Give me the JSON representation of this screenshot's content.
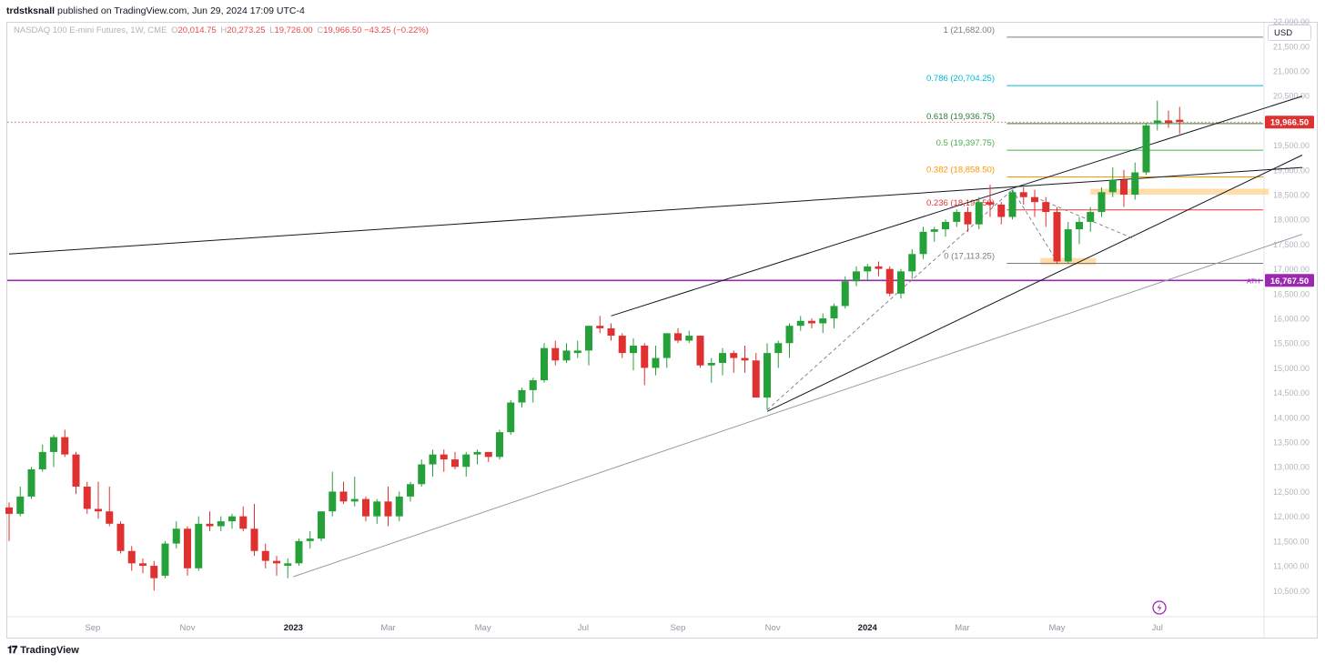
{
  "header": {
    "author": "trdstksnall",
    "published": "published on TradingView.com, Jun 29, 2024 17:09 UTC-4"
  },
  "legend": {
    "symbol": "NASDAQ 100 E-mini Futures, 1W, CME",
    "o_label": "O",
    "o_value": "20,014.75",
    "h_label": "H",
    "h_value": "20,273.25",
    "l_label": "L",
    "l_value": "19,726.00",
    "c_label": "C",
    "c_value": "19,966.50",
    "change": "−43.25 (−0.22%)"
  },
  "currency": "USD",
  "footer": {
    "brand": "TradingView",
    "logo_icon": "tradingview-logo-icon"
  },
  "colors": {
    "up": "#26a13a",
    "down": "#e03131",
    "ath": "#9c27b0",
    "price_tag": "#e03131",
    "fib_1": "#787b86",
    "fib_786": "#00bcd4",
    "fib_618": "#2e7d32",
    "fib_05": "#4caf50",
    "fib_382": "#ff9800",
    "fib_236": "#e53935",
    "fib_0": "#787b86",
    "zone": "#ffcc80"
  },
  "chart_data": {
    "type": "candlestick",
    "title": "NASDAQ 100 E-mini Futures, 1W, CME",
    "y_axis": {
      "min": 10500,
      "max": 22000,
      "ticks": [
        "22,000.00",
        "21,500.00",
        "21,000.00",
        "20,500.00",
        "20,000.00",
        "19,500.00",
        "19,000.00",
        "18,500.00",
        "18,000.00",
        "17,500.00",
        "17,000.00",
        "16,500.00",
        "16,000.00",
        "15,500.00",
        "15,000.00",
        "14,500.00",
        "14,000.00",
        "13,500.00",
        "13,000.00",
        "12,500.00",
        "12,000.00",
        "11,500.00",
        "11,000.00",
        "10,500.00"
      ],
      "tick_values": [
        22000,
        21500,
        21000,
        20500,
        20000,
        19500,
        19000,
        18500,
        18000,
        17500,
        17000,
        16500,
        16000,
        15500,
        15000,
        14500,
        14000,
        13500,
        13000,
        12500,
        12000,
        11500,
        11000,
        10500
      ]
    },
    "x_axis": {
      "labels": [
        "Sep",
        "Nov",
        "2023",
        "Mar",
        "May",
        "Jul",
        "Sep",
        "Nov",
        "2024",
        "Mar",
        "May",
        "Jul"
      ],
      "label_weeks": [
        7.5,
        16,
        25.5,
        34,
        42.5,
        51.5,
        60,
        68.5,
        77,
        85.5,
        94,
        103
      ],
      "bold": [
        "2023",
        "2024"
      ]
    },
    "candles": [
      [
        12180,
        12280,
        11500,
        12050
      ],
      [
        12050,
        12600,
        12000,
        12400
      ],
      [
        12400,
        13000,
        12350,
        12950
      ],
      [
        12950,
        13450,
        12900,
        13300
      ],
      [
        13300,
        13650,
        13000,
        13600
      ],
      [
        13600,
        13750,
        13200,
        13250
      ],
      [
        13250,
        13300,
        12450,
        12600
      ],
      [
        12600,
        12700,
        12050,
        12150
      ],
      [
        12150,
        12700,
        11950,
        12100
      ],
      [
        12100,
        12600,
        11800,
        11850
      ],
      [
        11850,
        11900,
        11250,
        11300
      ],
      [
        11300,
        11400,
        10900,
        11050
      ],
      [
        11050,
        11150,
        10850,
        11000
      ],
      [
        11000,
        11100,
        10500,
        10750
      ],
      [
        10800,
        11500,
        10750,
        11450
      ],
      [
        11450,
        11900,
        11350,
        11750
      ],
      [
        11750,
        11800,
        10800,
        10950
      ],
      [
        10950,
        12000,
        10900,
        11850
      ],
      [
        11850,
        12100,
        11700,
        11800
      ],
      [
        11800,
        12000,
        11700,
        11900
      ],
      [
        11900,
        12050,
        11750,
        12000
      ],
      [
        12000,
        12200,
        11700,
        11750
      ],
      [
        11750,
        12250,
        11200,
        11300
      ],
      [
        11300,
        11450,
        10950,
        11100
      ],
      [
        11100,
        11200,
        10800,
        11050
      ],
      [
        11000,
        11150,
        10750,
        11050
      ],
      [
        11050,
        11550,
        11000,
        11500
      ],
      [
        11500,
        11700,
        11350,
        11550
      ],
      [
        11550,
        12100,
        11500,
        12100
      ],
      [
        12100,
        12900,
        12000,
        12500
      ],
      [
        12500,
        12700,
        12250,
        12300
      ],
      [
        12300,
        12800,
        12200,
        12350
      ],
      [
        12350,
        12400,
        11900,
        12000
      ],
      [
        12000,
        12350,
        11850,
        12300
      ],
      [
        12300,
        12600,
        11800,
        12000
      ],
      [
        12000,
        12500,
        11900,
        12400
      ],
      [
        12400,
        12700,
        12300,
        12650
      ],
      [
        12650,
        13150,
        12600,
        13050
      ],
      [
        13050,
        13350,
        12800,
        13250
      ],
      [
        13250,
        13350,
        12900,
        13150
      ],
      [
        13150,
        13300,
        12950,
        13000
      ],
      [
        13000,
        13300,
        12800,
        13250
      ],
      [
        13250,
        13350,
        13050,
        13300
      ],
      [
        13300,
        13300,
        13100,
        13200
      ],
      [
        13200,
        13750,
        13150,
        13700
      ],
      [
        13700,
        14350,
        13650,
        14300
      ],
      [
        14300,
        14600,
        14200,
        14550
      ],
      [
        14550,
        14800,
        14300,
        14750
      ],
      [
        14750,
        15500,
        14700,
        15400
      ],
      [
        15400,
        15550,
        15050,
        15150
      ],
      [
        15150,
        15500,
        15100,
        15350
      ],
      [
        15300,
        15550,
        15200,
        15350
      ],
      [
        15350,
        15850,
        15050,
        15850
      ],
      [
        15850,
        16050,
        15700,
        15800
      ],
      [
        15800,
        15900,
        15550,
        15650
      ],
      [
        15650,
        15700,
        15200,
        15300
      ],
      [
        15300,
        15600,
        14950,
        15450
      ],
      [
        15450,
        15500,
        14650,
        15000
      ],
      [
        15000,
        15450,
        14850,
        15200
      ],
      [
        15200,
        15700,
        15000,
        15700
      ],
      [
        15700,
        15800,
        15500,
        15550
      ],
      [
        15550,
        15750,
        15500,
        15650
      ],
      [
        15650,
        15650,
        15000,
        15050
      ],
      [
        15050,
        15200,
        14700,
        15100
      ],
      [
        15100,
        15400,
        14850,
        15300
      ],
      [
        15300,
        15350,
        14900,
        15200
      ],
      [
        15200,
        15450,
        14900,
        15150
      ],
      [
        15150,
        15300,
        14400,
        14400
      ],
      [
        14400,
        15500,
        14150,
        15300
      ],
      [
        15300,
        15550,
        15000,
        15500
      ],
      [
        15500,
        15900,
        15200,
        15850
      ],
      [
        15850,
        16050,
        15750,
        15950
      ],
      [
        15950,
        16000,
        15800,
        15900
      ],
      [
        15900,
        16100,
        15700,
        16000
      ],
      [
        16000,
        16300,
        15800,
        16250
      ],
      [
        16250,
        16850,
        16200,
        16750
      ],
      [
        16750,
        17050,
        16650,
        16950
      ],
      [
        16950,
        17100,
        16750,
        17050
      ],
      [
        17050,
        17150,
        16850,
        17000
      ],
      [
        17000,
        17050,
        16450,
        16500
      ],
      [
        16500,
        17000,
        16400,
        16950
      ],
      [
        16950,
        17400,
        16800,
        17300
      ],
      [
        17300,
        17850,
        17200,
        17750
      ],
      [
        17750,
        17850,
        17550,
        17800
      ],
      [
        17800,
        18000,
        17650,
        17950
      ],
      [
        17950,
        18200,
        17850,
        18150
      ],
      [
        18150,
        18250,
        17750,
        17900
      ],
      [
        17900,
        18450,
        17800,
        18350
      ],
      [
        18350,
        18700,
        18050,
        18300
      ],
      [
        18300,
        18350,
        17900,
        18050
      ],
      [
        18050,
        18600,
        18000,
        18550
      ],
      [
        18550,
        18650,
        18300,
        18450
      ],
      [
        18450,
        18600,
        18050,
        18350
      ],
      [
        18350,
        18450,
        17850,
        18150
      ],
      [
        18150,
        18250,
        17100,
        17150
      ],
      [
        17150,
        17950,
        17100,
        17800
      ],
      [
        17800,
        18050,
        17500,
        17950
      ],
      [
        17950,
        18250,
        17750,
        18150
      ],
      [
        18150,
        18650,
        18050,
        18550
      ],
      [
        18550,
        19050,
        18450,
        18800
      ],
      [
        18800,
        19000,
        18250,
        18500
      ],
      [
        18500,
        19150,
        18400,
        18950
      ],
      [
        18950,
        19950,
        18900,
        19900
      ],
      [
        19950,
        20400,
        19800,
        20000
      ],
      [
        20000,
        20200,
        19850,
        19950
      ],
      [
        20014.75,
        20273.25,
        19726.0,
        19966.5
      ]
    ],
    "fibonacci": [
      {
        "label": "1 (21,682.00)",
        "value": 21682.0,
        "color": "#787b86"
      },
      {
        "label": "0.786 (20,704.25)",
        "value": 20704.25,
        "color": "#00bcd4"
      },
      {
        "label": "0.618 (19,936.75)",
        "value": 19936.75,
        "color": "#2e7d32"
      },
      {
        "label": "0.5 (19,397.75)",
        "value": 19397.75,
        "color": "#4caf50"
      },
      {
        "label": "0.382 (18,858.50)",
        "value": 18858.5,
        "color": "#ff9800"
      },
      {
        "label": "0.236 (18,191.50)",
        "value": 18191.5,
        "color": "#e53935"
      },
      {
        "label": "0 (17,113.25)",
        "value": 17113.25,
        "color": "#787b86"
      }
    ],
    "ath": {
      "label": "ATH",
      "value": 16767.5,
      "value_text": "16,767.50"
    },
    "current_price": {
      "value": 19966.5,
      "value_text": "19,966.50"
    },
    "zones": [
      {
        "from_week": 92.5,
        "to_week": 97.5,
        "low": 17080,
        "high": 17220
      },
      {
        "from_week": 97,
        "to_week": 113,
        "low": 18500,
        "high": 18620
      }
    ],
    "trendlines": [
      {
        "from": [
          0,
          17300
        ],
        "to": [
          116,
          19050
        ],
        "style": "solid",
        "color": "#131722"
      },
      {
        "from": [
          54,
          16050
        ],
        "to": [
          116,
          20490
        ],
        "style": "solid",
        "color": "#131722"
      },
      {
        "from": [
          68,
          14120
        ],
        "to": [
          116,
          19300
        ],
        "style": "solid",
        "color": "#131722"
      },
      {
        "from": [
          25.5,
          10780
        ],
        "to": [
          116,
          17700
        ],
        "style": "solid",
        "color": "#9598a1"
      },
      {
        "from": [
          68,
          14150
        ],
        "to": [
          90,
          18600
        ],
        "style": "dashed",
        "color": "#787b86"
      },
      {
        "from": [
          90,
          18600
        ],
        "to": [
          94,
          17150
        ],
        "style": "dashed",
        "color": "#787b86"
      },
      {
        "from": [
          92,
          18450
        ],
        "to": [
          101,
          17600
        ],
        "style": "dashed",
        "color": "#787b86"
      }
    ]
  }
}
